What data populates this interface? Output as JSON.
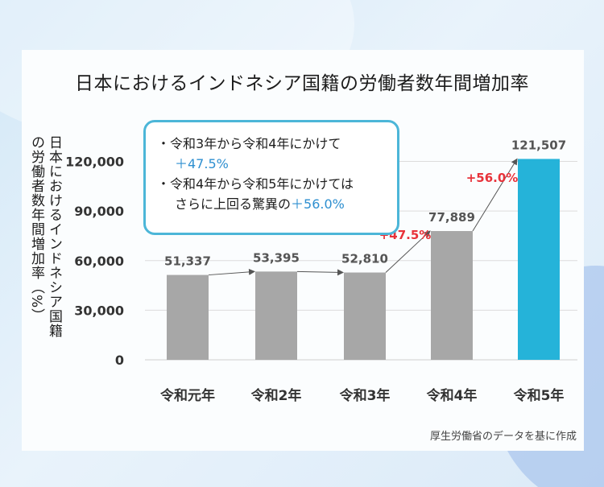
{
  "title": "日本におけるインドネシア国籍の労働者数年間増加率",
  "source": "厚生労働省のデータを基に作成",
  "callout": {
    "line1_bullet": "・",
    "line1_text": "令和3年から令和4年にかけて",
    "line1_value": "＋47.5%",
    "line2_bullet": "・",
    "line2_text": "令和4年から令和5年にかけては",
    "line2_text2": "さらに上回る驚異の",
    "line2_value": "＋56.0%"
  },
  "colors": {
    "bar_default": "#a7a7a7",
    "bar_highlight": "#25b3d9",
    "growth_label": "#e8323a",
    "callout_border": "#4cb6d8",
    "callout_value": "#2e8fd0"
  },
  "chart_data": {
    "type": "bar",
    "title": "日本におけるインドネシア国籍の労働者数年間増加率",
    "ylabel": "日本におけるインドネシア国籍の労働者数年間増加率（%）",
    "xlabel": "",
    "categories": [
      "令和元年",
      "令和2年",
      "令和3年",
      "令和4年",
      "令和5年"
    ],
    "values": [
      51337,
      53395,
      52810,
      77889,
      121507
    ],
    "value_labels": [
      "51,337",
      "53,395",
      "52,810",
      "77,889",
      "121,507"
    ],
    "highlight_index": 4,
    "ylim": [
      0,
      130000
    ],
    "yticks": [
      0,
      30000,
      60000,
      90000,
      120000
    ],
    "ytick_labels": [
      "0",
      "30,000",
      "60,000",
      "90,000",
      "120,000"
    ],
    "grid": true,
    "growth_annotations": [
      {
        "from_index": 2,
        "to_index": 3,
        "label": "+47.5%"
      },
      {
        "from_index": 3,
        "to_index": 4,
        "label": "+56.0%"
      }
    ]
  }
}
